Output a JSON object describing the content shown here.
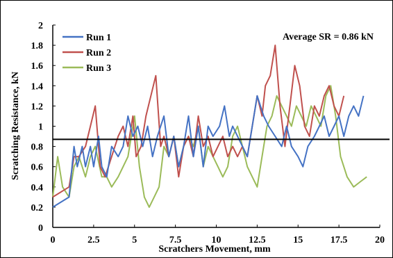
{
  "chart_data": {
    "type": "line",
    "title": "",
    "xlabel": "Scratchers Movement, mm",
    "ylabel": "Scratching Resistance, kN",
    "xlim": [
      0,
      20
    ],
    "ylim": [
      0,
      2
    ],
    "xticks": [
      0,
      2.5,
      5,
      7.5,
      10,
      12.5,
      15,
      17.5,
      20
    ],
    "xtick_labels": [
      "0",
      "2.5",
      "5",
      "7.5",
      "10",
      "12.5",
      "15",
      "17.5",
      "20"
    ],
    "yticks": [
      0,
      0.2,
      0.4,
      0.6,
      0.8,
      1,
      1.2,
      1.4,
      1.6,
      1.8,
      2
    ],
    "ytick_labels": [
      "0",
      "0.2",
      "0.4",
      "0.6",
      "0.8",
      "1",
      "1.2",
      "1.4",
      "1.6",
      "1.8",
      "2"
    ],
    "grid": false,
    "legend_position": "top-left",
    "annotation": "Average SR = 0.86 kN",
    "reference_line": {
      "y": 0.87,
      "color": "#000000"
    },
    "series": [
      {
        "name": "Run 1",
        "color": "#4472C4",
        "x": [
          0,
          1,
          1.3,
          1.5,
          1.8,
          2.0,
          2.3,
          2.5,
          2.8,
          3.0,
          3.3,
          3.6,
          4.0,
          4.3,
          4.6,
          4.9,
          5.2,
          5.5,
          5.8,
          6.1,
          6.4,
          6.8,
          7.1,
          7.4,
          7.7,
          8.0,
          8.3,
          8.6,
          8.9,
          9.2,
          9.5,
          9.8,
          10.2,
          10.5,
          10.8,
          11.0,
          11.3,
          11.6,
          11.9,
          12.2,
          12.5,
          12.9,
          13.2,
          13.6,
          14.0,
          14.3,
          14.6,
          15.0,
          15.3,
          15.6,
          16.0,
          16.3,
          16.6,
          16.9,
          17.2,
          17.5,
          17.8,
          18.1,
          18.4,
          18.7,
          19.0
        ],
        "y": [
          0.2,
          0.3,
          0.8,
          0.6,
          0.8,
          0.6,
          0.8,
          0.6,
          0.9,
          0.6,
          0.5,
          0.8,
          0.7,
          0.8,
          1.1,
          0.9,
          1.0,
          0.8,
          1.0,
          0.7,
          0.9,
          1.1,
          0.7,
          0.9,
          0.6,
          0.8,
          1.1,
          0.7,
          1.0,
          0.6,
          1.0,
          0.9,
          1.0,
          1.2,
          0.9,
          1.0,
          0.9,
          0.8,
          0.7,
          1.0,
          1.3,
          1.1,
          1.0,
          0.9,
          0.8,
          1.0,
          0.8,
          0.7,
          0.6,
          0.8,
          0.9,
          1.0,
          1.1,
          0.9,
          1.0,
          1.1,
          0.9,
          1.1,
          1.2,
          1.1,
          1.3
        ]
      },
      {
        "name": "Run 2",
        "color": "#C0504D",
        "x": [
          0,
          1,
          1.3,
          1.6,
          2.0,
          2.3,
          2.6,
          2.9,
          3.2,
          3.6,
          4.0,
          4.3,
          4.6,
          4.9,
          5.1,
          5.4,
          5.7,
          6.0,
          6.3,
          6.6,
          6.8,
          7.1,
          7.4,
          7.7,
          8.0,
          8.3,
          8.6,
          8.9,
          9.2,
          9.5,
          9.8,
          10.1,
          10.4,
          10.7,
          11.0,
          11.3,
          11.6,
          11.9,
          12.2,
          12.5,
          12.8,
          13.0,
          13.3,
          13.6,
          13.9,
          14.2,
          14.5,
          14.8,
          15.1,
          15.4,
          15.7,
          16.0,
          16.3,
          16.6,
          16.9,
          17.2,
          17.5,
          17.8
        ],
        "y": [
          0.3,
          0.4,
          0.7,
          0.7,
          0.8,
          1.0,
          1.2,
          0.6,
          0.5,
          0.7,
          0.9,
          1.0,
          0.8,
          1.1,
          0.7,
          0.8,
          1.1,
          1.3,
          1.5,
          0.8,
          0.9,
          0.7,
          0.9,
          0.5,
          0.8,
          0.9,
          0.7,
          1.1,
          0.8,
          0.9,
          0.7,
          0.8,
          0.9,
          0.7,
          0.8,
          0.7,
          0.8,
          0.7,
          1.0,
          1.3,
          1.1,
          1.4,
          1.5,
          1.8,
          1.2,
          0.8,
          1.2,
          1.6,
          1.4,
          1.0,
          0.9,
          1.2,
          1.1,
          1.3,
          1.4,
          1.2,
          1.1,
          1.3
        ]
      },
      {
        "name": "Run 3",
        "color": "#9BBB59",
        "x": [
          0,
          0.3,
          0.6,
          1.0,
          1.3,
          1.6,
          2.0,
          2.3,
          2.6,
          3.0,
          3.3,
          3.6,
          4.0,
          4.3,
          4.6,
          5.0,
          5.3,
          5.6,
          5.9,
          6.2,
          6.5,
          6.8,
          7.1,
          7.4,
          7.7,
          8.0,
          8.3,
          8.6,
          8.9,
          9.2,
          9.5,
          9.8,
          10.1,
          10.4,
          10.7,
          11.0,
          11.3,
          11.6,
          11.9,
          12.2,
          12.5,
          12.8,
          13.1,
          13.4,
          13.7,
          14.0,
          14.3,
          14.6,
          14.9,
          15.2,
          15.5,
          15.8,
          16.1,
          16.4,
          16.7,
          17.0,
          17.3,
          17.6,
          18.0,
          18.4,
          18.8,
          19.2
        ],
        "y": [
          0.3,
          0.7,
          0.4,
          0.3,
          0.6,
          0.7,
          0.5,
          0.7,
          0.8,
          0.5,
          0.5,
          0.4,
          0.5,
          0.6,
          0.7,
          1.1,
          0.6,
          0.3,
          0.2,
          0.3,
          0.4,
          0.8,
          0.7,
          0.9,
          0.6,
          0.8,
          0.9,
          0.8,
          1.0,
          0.6,
          0.8,
          0.7,
          0.6,
          0.5,
          0.6,
          0.9,
          1.0,
          0.8,
          0.6,
          0.5,
          0.4,
          0.7,
          1.0,
          1.1,
          1.3,
          1.2,
          1.1,
          1.0,
          1.2,
          1.1,
          1.0,
          1.2,
          1.1,
          1.0,
          1.3,
          1.4,
          1.1,
          0.7,
          0.5,
          0.4,
          0.45,
          0.5
        ]
      }
    ]
  }
}
